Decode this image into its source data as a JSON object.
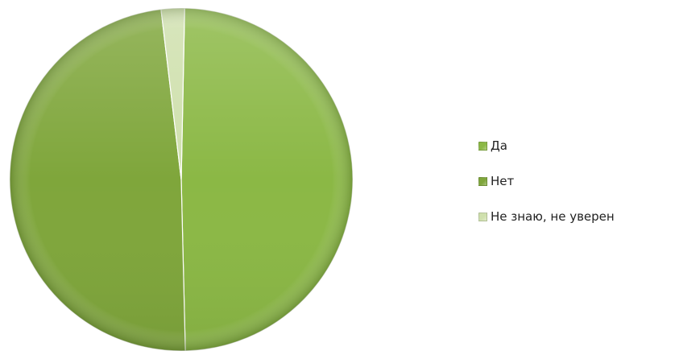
{
  "chart_data": {
    "type": "pie",
    "categories": [
      "Да",
      "Нет",
      "Не знаю, не уверен"
    ],
    "values": [
      49.3,
      48.5,
      2.2
    ],
    "colors": [
      "#8bb845",
      "#7fa63b",
      "#cfe0ad"
    ],
    "legend_position": "right"
  }
}
